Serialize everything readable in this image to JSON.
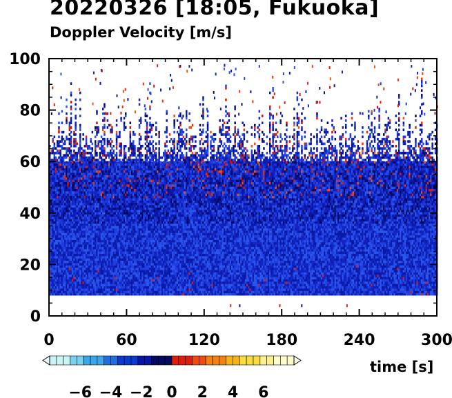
{
  "chart_data": {
    "type": "heatmap",
    "title": "20220326 [18:05, Fukuoka]",
    "subtitle": "Doppler Velocity [m/s]",
    "xlabel": "time [s]",
    "ylabel": "",
    "xlim": [
      0,
      300
    ],
    "ylim": [
      0,
      100
    ],
    "x_ticks": [
      0,
      60,
      120,
      180,
      240,
      300
    ],
    "y_ticks": [
      0,
      20,
      40,
      60,
      80,
      100
    ],
    "data_range": {
      "height_min": 8,
      "typical_top": [
        60,
        80
      ],
      "sparse_top": 100
    },
    "colorbar": {
      "min": -8,
      "max": 8,
      "ticks": [
        -6,
        -4,
        -2,
        0,
        2,
        4,
        6
      ],
      "tick_labels": [
        "−6",
        "−4",
        "−2",
        "0",
        "2",
        "4",
        "6"
      ],
      "colors": [
        "#c8f4f4",
        "#78d2ee",
        "#3aa6ec",
        "#1c6fe2",
        "#0a3ad0",
        "#0716a6",
        "#050a60",
        "#e01c0c",
        "#f04a0e",
        "#f5800e",
        "#f7b218",
        "#f8dc40",
        "#fbf090",
        "#fdfccc"
      ]
    }
  }
}
